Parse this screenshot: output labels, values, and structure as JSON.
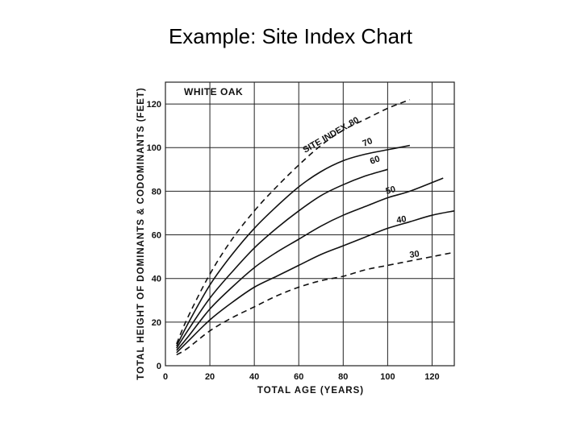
{
  "slide": {
    "title": "Example: Site Index Chart"
  },
  "chart_data": {
    "type": "line",
    "inset_label": "WHITE OAK",
    "index_label": "SITE INDEX",
    "xlabel": "TOTAL AGE (YEARS)",
    "ylabel": "TOTAL HEIGHT OF DOMINANTS & CODOMINANTS (FEET)",
    "xlim": [
      0,
      130
    ],
    "ylim": [
      0,
      130
    ],
    "x_ticks": [
      "0",
      "20",
      "40",
      "60",
      "80",
      "100",
      "120"
    ],
    "y_ticks": [
      "0",
      "20",
      "40",
      "60",
      "80",
      "100",
      "120"
    ],
    "grid": true,
    "series": [
      {
        "name": "80",
        "style": "dashed",
        "x": [
          5,
          10,
          20,
          30,
          40,
          50,
          60,
          70,
          80,
          90,
          100,
          110
        ],
        "y": [
          10,
          22,
          42,
          58,
          71,
          82,
          92,
          101,
          108,
          113,
          118,
          122
        ]
      },
      {
        "name": "70",
        "style": "solid",
        "x": [
          5,
          10,
          20,
          30,
          40,
          50,
          60,
          70,
          80,
          90,
          100,
          110
        ],
        "y": [
          9,
          19,
          37,
          51,
          63,
          73,
          82,
          89,
          94,
          97,
          99,
          101
        ]
      },
      {
        "name": "60",
        "style": "solid",
        "x": [
          5,
          10,
          20,
          30,
          40,
          50,
          60,
          70,
          80,
          90,
          100
        ],
        "y": [
          8,
          16,
          31,
          43,
          54,
          63,
          71,
          78,
          83,
          87,
          90
        ]
      },
      {
        "name": "50",
        "style": "solid",
        "x": [
          5,
          10,
          20,
          30,
          40,
          50,
          60,
          70,
          80,
          90,
          100,
          110,
          125
        ],
        "y": [
          7,
          13,
          26,
          36,
          45,
          52,
          58,
          64,
          69,
          73,
          77,
          80,
          86
        ]
      },
      {
        "name": "40",
        "style": "solid",
        "x": [
          5,
          10,
          20,
          30,
          40,
          50,
          60,
          70,
          80,
          90,
          100,
          110,
          120,
          130
        ],
        "y": [
          6,
          11,
          21,
          29,
          36,
          41,
          46,
          51,
          55,
          59,
          63,
          66,
          69,
          71
        ]
      },
      {
        "name": "30",
        "style": "dashed",
        "x": [
          5,
          10,
          20,
          30,
          40,
          50,
          60,
          70,
          80,
          90,
          100,
          110,
          120,
          130
        ],
        "y": [
          5,
          8,
          16,
          22,
          27,
          32,
          36,
          39,
          41,
          44,
          46,
          48,
          50,
          52
        ]
      }
    ],
    "colors": {
      "lines": "#111111",
      "grid": "#222222",
      "text": "#111111"
    }
  }
}
